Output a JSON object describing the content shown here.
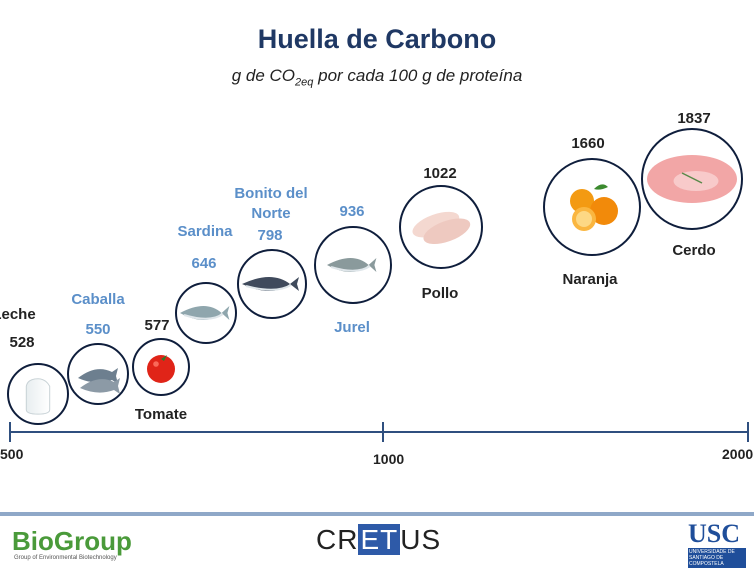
{
  "chart_data": {
    "type": "scatter",
    "title": "Huella de Carbono",
    "subtitle_parts": [
      "g de CO",
      "2eq",
      " por cada 100 g de proteína"
    ],
    "xlim": [
      500,
      2000
    ],
    "ticks": [
      "500",
      "1000",
      "2000"
    ],
    "points": [
      {
        "name": "Leche",
        "value": 528,
        "label": "528",
        "icon": "milk-jug-icon",
        "color": "#222222"
      },
      {
        "name": "Caballa",
        "value": 550,
        "label": "550",
        "icon": "mackerel-icon",
        "color": "#5B8FC9"
      },
      {
        "name": "Tomate",
        "value": 577,
        "label": "577",
        "icon": "tomato-icon",
        "color": "#222222"
      },
      {
        "name": "Sardina",
        "value": 646,
        "label": "646",
        "icon": "sardine-icon",
        "color": "#5B8FC9"
      },
      {
        "name": "Bonito del Norte",
        "value": 798,
        "label": "798",
        "icon": "tuna-icon",
        "color": "#5B8FC9"
      },
      {
        "name": "Jurel",
        "value": 936,
        "label": "936",
        "icon": "horse-mackerel-icon",
        "color": "#5B8FC9"
      },
      {
        "name": "Pollo",
        "value": 1022,
        "label": "1022",
        "icon": "chicken-breast-icon",
        "color": "#222222"
      },
      {
        "name": "Naranja",
        "value": 1660,
        "label": "1660",
        "icon": "orange-icon",
        "color": "#222222"
      },
      {
        "name": "Cerdo",
        "value": 1837,
        "label": "1837",
        "icon": "pork-icon",
        "color": "#222222"
      }
    ]
  },
  "footer": {
    "biogroup": "BioGroup",
    "biogroup_sub": "Group of Environmental Biotechnology",
    "cretus_a": "CR",
    "cretus_b": "ET",
    "cretus_c": "US",
    "usc": "USC",
    "usc_sub": "UNIVERSIDADE DE SANTIAGO DE COMPOSTELA"
  }
}
